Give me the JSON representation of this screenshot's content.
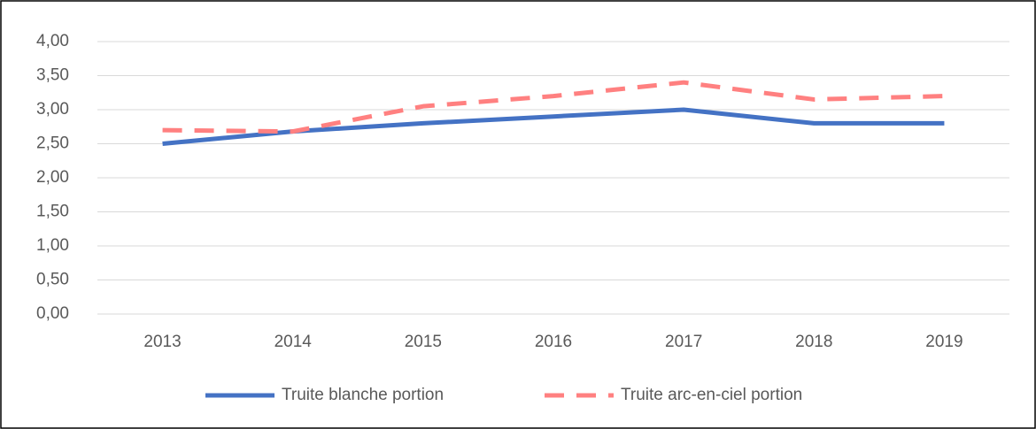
{
  "chart_data": {
    "type": "line",
    "categories": [
      "2013",
      "2014",
      "2015",
      "2016",
      "2017",
      "2018",
      "2019"
    ],
    "series": [
      {
        "name": "Truite blanche portion",
        "color": "#4472c4",
        "dash": "solid",
        "values": [
          2.5,
          2.68,
          2.8,
          2.9,
          3.0,
          2.8,
          2.8
        ]
      },
      {
        "name": "Truite arc-en-ciel portion",
        "color": "#ff8080",
        "dash": "dashed",
        "values": [
          2.7,
          2.68,
          3.05,
          3.2,
          3.4,
          3.15,
          3.2
        ]
      }
    ],
    "ylim": [
      0,
      4
    ],
    "yticks": [
      {
        "value": 0,
        "label": "0,00"
      },
      {
        "value": 0.5,
        "label": "0,50"
      },
      {
        "value": 1,
        "label": "1,00"
      },
      {
        "value": 1.5,
        "label": "1,50"
      },
      {
        "value": 2,
        "label": "2,00"
      },
      {
        "value": 2.5,
        "label": "2,50"
      },
      {
        "value": 3,
        "label": "3,00"
      },
      {
        "value": 3.5,
        "label": "3,50"
      },
      {
        "value": 4,
        "label": "4,00"
      }
    ],
    "grid": true,
    "legend": "bottom"
  }
}
